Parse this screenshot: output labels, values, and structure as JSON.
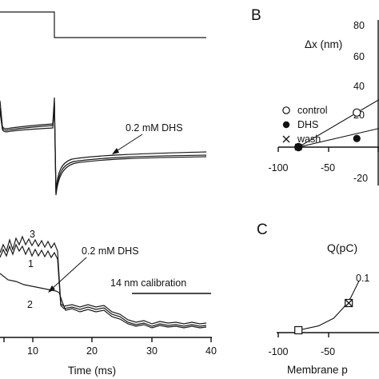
{
  "figure": {
    "panel_letters": [
      "B",
      "C"
    ],
    "panel_a": {
      "annotation_top": "0.2 mM DHS",
      "trace_labels": [
        "3",
        "1",
        "2"
      ],
      "annotation_bottom": "0.2 mM DHS",
      "calibration_label": "14 nm calibration",
      "xlabel": "Time (ms)",
      "xticks": [
        "10",
        "20",
        "30",
        "40"
      ]
    },
    "panel_b": {
      "ylabel": "Δx (nm)",
      "yticks": [
        "80",
        "60",
        "40",
        "20",
        "-20"
      ],
      "xticks": [
        "-100",
        "-50"
      ],
      "legend": [
        {
          "label": "control",
          "marker": "open-circle"
        },
        {
          "label": "DHS",
          "marker": "filled-circle"
        },
        {
          "label": "wash",
          "marker": "cross"
        }
      ]
    },
    "panel_c": {
      "ylabel": "Q(pC)",
      "ytick": "0.1",
      "xticks": [
        "-100",
        "-50"
      ],
      "xlabel": "Membrane p"
    }
  },
  "chart_data": [
    {
      "panel": "A",
      "type": "line",
      "title": "",
      "xlabel": "Time (ms)",
      "xlim": [
        0,
        40
      ],
      "annotations": [
        "0.2 mM DHS",
        "14 nm calibration",
        "3",
        "1",
        "2"
      ],
      "step_change_ms": 14,
      "series": [
        {
          "name": "1",
          "x": [
            0,
            5,
            10,
            13.5,
            14.5,
            20,
            25,
            30,
            35,
            40
          ],
          "values": [
            28,
            27,
            26,
            26,
            8,
            7,
            4,
            2,
            1,
            1
          ]
        },
        {
          "name": "2",
          "x": [
            0,
            5,
            10,
            13.5,
            14.5,
            20,
            25,
            30,
            35,
            40
          ],
          "values": [
            13,
            11,
            9,
            8,
            6,
            5,
            2,
            1,
            1,
            1
          ]
        },
        {
          "name": "3",
          "x": [
            0,
            5,
            10,
            13.5,
            14.5,
            20,
            25,
            30,
            35,
            40
          ],
          "values": [
            30,
            30,
            29,
            29,
            8,
            7,
            4,
            2,
            1,
            1
          ]
        }
      ]
    },
    {
      "panel": "B",
      "type": "scatter",
      "title": "",
      "ylabel": "Δx (nm)",
      "ylim": [
        -20,
        80
      ],
      "yticks": [
        -20,
        20,
        40,
        60,
        80
      ],
      "xlim": [
        -110,
        0
      ],
      "xticks": [
        -100,
        -50
      ],
      "series": [
        {
          "name": "control",
          "marker": "open-circle",
          "x": [
            -80,
            -22
          ],
          "values": [
            0,
            24
          ]
        },
        {
          "name": "DHS",
          "marker": "filled-circle",
          "x": [
            -80,
            -22
          ],
          "values": [
            0,
            6
          ]
        },
        {
          "name": "wash",
          "marker": "cross",
          "x": [
            -80
          ],
          "values": [
            0
          ]
        }
      ],
      "fit_lines": [
        {
          "x": [
            -80,
            0
          ],
          "values": [
            0,
            33
          ]
        },
        {
          "x": [
            -80,
            0
          ],
          "values": [
            0,
            13
          ]
        }
      ]
    },
    {
      "panel": "C",
      "type": "scatter",
      "title": "",
      "ylabel": "Q(pC)",
      "xlabel": "Membrane p",
      "xlim": [
        -110,
        0
      ],
      "xticks": [
        -100,
        -50
      ],
      "yticks": [
        0.1
      ],
      "ylim": [
        0,
        0.2
      ],
      "series": [
        {
          "name": "",
          "marker": "open-square",
          "x": [
            -80,
            -30
          ],
          "values": [
            0,
            0.05
          ]
        },
        {
          "name": "",
          "marker": "cross",
          "x": [
            -30
          ],
          "values": [
            0.05
          ]
        }
      ],
      "fit_curve": {
        "x": [
          -80,
          -60,
          -45,
          -35,
          -28,
          -20
        ],
        "values": [
          0,
          0.008,
          0.022,
          0.042,
          0.06,
          0.09
        ]
      }
    }
  ]
}
